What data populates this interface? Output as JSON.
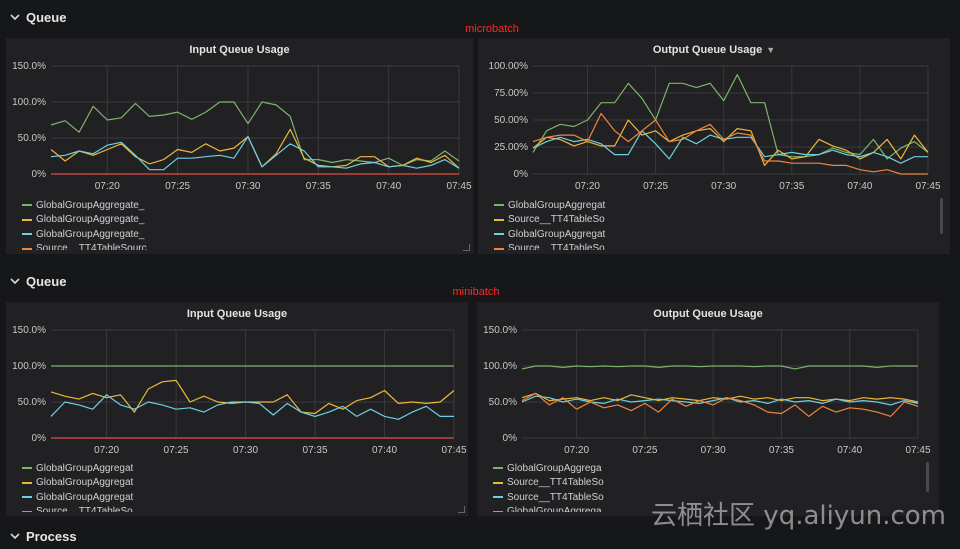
{
  "colors": {
    "green": "#7eb26d",
    "yellow": "#eab839",
    "cyan": "#6ed0e0",
    "orange": "#ef843c",
    "red": "#e24d42",
    "grid": "#3a3a3d"
  },
  "rows": [
    {
      "title": "Queue",
      "run_label": "microbatch"
    },
    {
      "title": "Queue",
      "run_label": "minibatch"
    },
    {
      "title": "Process"
    }
  ],
  "watermark": "云栖社区 yq.aliyun.com",
  "chart_data": [
    {
      "type": "line",
      "title": "Input Queue Usage",
      "x": [
        "07:16",
        "07:17",
        "07:18",
        "07:19",
        "07:20",
        "07:21",
        "07:22",
        "07:23",
        "07:24",
        "07:25",
        "07:26",
        "07:27",
        "07:28",
        "07:29",
        "07:30",
        "07:31",
        "07:32",
        "07:33",
        "07:34",
        "07:35",
        "07:36",
        "07:37",
        "07:38",
        "07:39",
        "07:40",
        "07:41",
        "07:42",
        "07:43",
        "07:44",
        "07:45"
      ],
      "x_ticks": [
        "07:20",
        "07:25",
        "07:30",
        "07:35",
        "07:40",
        "07:45"
      ],
      "y_ticks": [
        "0%",
        "50.0%",
        "100.0%",
        "150.0%"
      ],
      "ylim": [
        0,
        150
      ],
      "legend": [
        "GlobalGroupAggregate_",
        "GlobalGroupAggregate_",
        "GlobalGroupAggregate_",
        "Source__TT4TableSourc"
      ],
      "series": [
        {
          "color": "green",
          "values": [
            68,
            74,
            58,
            94,
            75,
            78,
            98,
            80,
            82,
            86,
            76,
            86,
            100,
            100,
            70,
            100,
            96,
            80,
            20,
            20,
            16,
            20,
            18,
            16,
            22,
            12,
            20,
            18,
            32,
            18
          ]
        },
        {
          "color": "yellow",
          "values": [
            34,
            18,
            32,
            26,
            34,
            42,
            24,
            14,
            20,
            34,
            30,
            42,
            32,
            36,
            52,
            10,
            28,
            62,
            22,
            12,
            10,
            12,
            24,
            24,
            10,
            12,
            22,
            16,
            26,
            8
          ]
        },
        {
          "color": "cyan",
          "values": [
            24,
            26,
            32,
            28,
            40,
            44,
            26,
            6,
            6,
            22,
            22,
            24,
            26,
            22,
            52,
            10,
            26,
            42,
            32,
            10,
            10,
            8,
            14,
            16,
            10,
            12,
            8,
            12,
            20,
            8
          ]
        },
        {
          "color": "orange",
          "values": [
            0,
            0,
            0,
            0,
            0,
            0,
            0,
            0,
            0,
            0,
            0,
            0,
            0,
            0,
            0,
            0,
            0,
            0,
            0,
            0,
            0,
            0,
            0,
            0,
            0,
            0,
            0,
            0,
            0,
            0
          ]
        }
      ]
    },
    {
      "type": "line",
      "title": "Output Queue Usage",
      "x": [
        "07:16",
        "07:17",
        "07:18",
        "07:19",
        "07:20",
        "07:21",
        "07:22",
        "07:23",
        "07:24",
        "07:25",
        "07:26",
        "07:27",
        "07:28",
        "07:29",
        "07:30",
        "07:31",
        "07:32",
        "07:33",
        "07:34",
        "07:35",
        "07:36",
        "07:37",
        "07:38",
        "07:39",
        "07:40",
        "07:41",
        "07:42",
        "07:43",
        "07:44",
        "07:45"
      ],
      "x_ticks": [
        "07:20",
        "07:25",
        "07:30",
        "07:35",
        "07:40",
        "07:45"
      ],
      "y_ticks": [
        "0%",
        "25.00%",
        "50.00%",
        "75.00%",
        "100.00%"
      ],
      "ylim": [
        0,
        100
      ],
      "legend": [
        "GlobalGroupAggregat",
        "Source__TT4TableSo",
        "GlobalGroupAggregat",
        "Source__TT4TableSo"
      ],
      "series": [
        {
          "color": "green",
          "values": [
            20,
            40,
            46,
            44,
            50,
            66,
            66,
            84,
            70,
            50,
            84,
            84,
            80,
            84,
            68,
            92,
            66,
            66,
            18,
            16,
            16,
            18,
            24,
            20,
            18,
            32,
            14,
            24,
            30,
            20
          ]
        },
        {
          "color": "yellow",
          "values": [
            24,
            34,
            32,
            26,
            30,
            26,
            26,
            50,
            36,
            40,
            30,
            36,
            40,
            42,
            30,
            42,
            40,
            8,
            22,
            14,
            16,
            32,
            26,
            22,
            14,
            20,
            32,
            14,
            36,
            20
          ]
        },
        {
          "color": "cyan",
          "values": [
            24,
            30,
            34,
            30,
            32,
            28,
            18,
            18,
            40,
            28,
            14,
            34,
            28,
            36,
            32,
            34,
            34,
            16,
            18,
            20,
            18,
            18,
            22,
            18,
            16,
            20,
            16,
            10,
            16,
            16
          ]
        },
        {
          "color": "orange",
          "values": [
            30,
            34,
            36,
            36,
            30,
            56,
            40,
            30,
            40,
            50,
            30,
            32,
            40,
            46,
            32,
            38,
            36,
            12,
            12,
            10,
            10,
            10,
            8,
            8,
            4,
            2,
            4,
            0,
            0,
            0
          ]
        }
      ]
    },
    {
      "type": "line",
      "title": "Input Queue Usage",
      "x": [
        "07:16",
        "07:17",
        "07:18",
        "07:19",
        "07:20",
        "07:21",
        "07:22",
        "07:23",
        "07:24",
        "07:25",
        "07:26",
        "07:27",
        "07:28",
        "07:29",
        "07:30",
        "07:31",
        "07:32",
        "07:33",
        "07:34",
        "07:35",
        "07:36",
        "07:37",
        "07:38",
        "07:39",
        "07:40",
        "07:41",
        "07:42",
        "07:43",
        "07:44",
        "07:45"
      ],
      "x_ticks": [
        "07:20",
        "07:25",
        "07:30",
        "07:35",
        "07:40",
        "07:45"
      ],
      "y_ticks": [
        "0%",
        "50.0%",
        "100.0%",
        "150.0%"
      ],
      "ylim": [
        0,
        150
      ],
      "legend": [
        "GlobalGroupAggregat",
        "GlobalGroupAggregat",
        "GlobalGroupAggregat",
        "Source__TT4TableSo"
      ],
      "series": [
        {
          "color": "green",
          "values": [
            100,
            100,
            100,
            100,
            100,
            100,
            100,
            100,
            100,
            100,
            100,
            100,
            100,
            100,
            100,
            100,
            100,
            100,
            100,
            100,
            100,
            100,
            100,
            100,
            100,
            100,
            100,
            100,
            100,
            100
          ]
        },
        {
          "color": "yellow",
          "values": [
            64,
            58,
            54,
            62,
            56,
            60,
            36,
            68,
            78,
            80,
            50,
            58,
            50,
            48,
            50,
            50,
            50,
            60,
            36,
            34,
            48,
            40,
            52,
            56,
            66,
            48,
            50,
            48,
            50,
            66
          ]
        },
        {
          "color": "cyan",
          "values": [
            30,
            50,
            46,
            40,
            60,
            46,
            40,
            50,
            46,
            40,
            42,
            36,
            46,
            50,
            50,
            48,
            32,
            48,
            36,
            30,
            36,
            44,
            30,
            40,
            30,
            26,
            36,
            44,
            30,
            30
          ]
        },
        {
          "color": "orange",
          "values": [
            0,
            0,
            0,
            0,
            0,
            0,
            0,
            0,
            0,
            0,
            0,
            0,
            0,
            0,
            0,
            0,
            0,
            0,
            0,
            0,
            0,
            0,
            0,
            0,
            0,
            0,
            0,
            0,
            0,
            0
          ]
        }
      ]
    },
    {
      "type": "line",
      "title": "Output Queue Usage",
      "x": [
        "07:16",
        "07:17",
        "07:18",
        "07:19",
        "07:20",
        "07:21",
        "07:22",
        "07:23",
        "07:24",
        "07:25",
        "07:26",
        "07:27",
        "07:28",
        "07:29",
        "07:30",
        "07:31",
        "07:32",
        "07:33",
        "07:34",
        "07:35",
        "07:36",
        "07:37",
        "07:38",
        "07:39",
        "07:40",
        "07:41",
        "07:42",
        "07:43",
        "07:44",
        "07:45"
      ],
      "x_ticks": [
        "07:20",
        "07:25",
        "07:30",
        "07:35",
        "07:40",
        "07:45"
      ],
      "y_ticks": [
        "0%",
        "50.0%",
        "100.0%",
        "150.0%"
      ],
      "ylim": [
        0,
        150
      ],
      "legend": [
        "GlobalGroupAggrega",
        "Source__TT4TableSo",
        "Source__TT4TableSo",
        "GlobalGroupAggrega"
      ],
      "series": [
        {
          "color": "green",
          "values": [
            96,
            100,
            100,
            98,
            100,
            99,
            100,
            99,
            100,
            100,
            98,
            100,
            100,
            99,
            100,
            100,
            100,
            99,
            100,
            100,
            96,
            100,
            100,
            100,
            100,
            100,
            98,
            100,
            100,
            100
          ]
        },
        {
          "color": "yellow",
          "values": [
            56,
            62,
            52,
            54,
            56,
            52,
            56,
            52,
            60,
            56,
            52,
            56,
            54,
            52,
            56,
            54,
            58,
            54,
            56,
            52,
            56,
            56,
            52,
            54,
            52,
            56,
            54,
            56,
            54,
            50
          ]
        },
        {
          "color": "cyan",
          "values": [
            50,
            58,
            56,
            50,
            54,
            50,
            48,
            54,
            50,
            52,
            54,
            52,
            50,
            48,
            52,
            56,
            50,
            52,
            48,
            54,
            50,
            52,
            48,
            54,
            50,
            52,
            50,
            46,
            52,
            48
          ]
        },
        {
          "color": "orange",
          "values": [
            52,
            62,
            46,
            56,
            40,
            50,
            42,
            46,
            38,
            48,
            36,
            54,
            44,
            52,
            46,
            56,
            52,
            46,
            36,
            34,
            46,
            30,
            44,
            36,
            42,
            40,
            36,
            30,
            50,
            44
          ]
        }
      ]
    }
  ]
}
